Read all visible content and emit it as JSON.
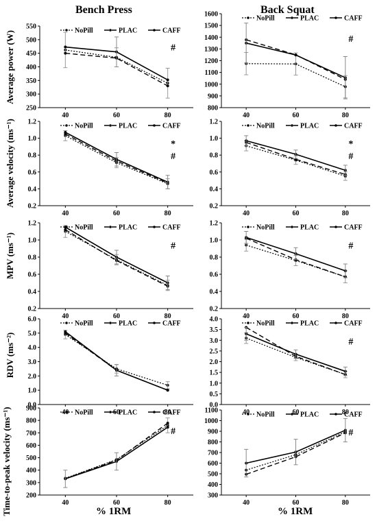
{
  "titles": {
    "left": "Bench Press",
    "right": "Back Squat"
  },
  "row_labels": [
    "Average power (W)",
    "Average velocity (ms⁻¹)",
    "MPV (ms⁻¹)",
    "RDV (ms⁻²)",
    "Time-to-peak velocity (ms⁻¹)"
  ],
  "xlabel": "% 1RM",
  "legend": [
    "NoPill",
    "PLAC",
    "CAFF"
  ],
  "chart_data": [
    {
      "type": "line",
      "panel": "bench-power",
      "x": [
        40,
        60,
        80
      ],
      "ylim": [
        250,
        550
      ],
      "yticks": [
        250,
        300,
        350,
        400,
        450,
        500,
        550
      ],
      "ydec": 0,
      "series": [
        {
          "name": "NoPill",
          "values": [
            462,
            435,
            340
          ],
          "err": [
            65,
            35,
            55
          ]
        },
        {
          "name": "PLAC",
          "values": [
            450,
            432,
            330
          ],
          "err": [
            0,
            0,
            0
          ]
        },
        {
          "name": "CAFF",
          "values": [
            473,
            455,
            352
          ],
          "err": [
            0,
            55,
            0
          ]
        }
      ],
      "annotations": [
        "#"
      ]
    },
    {
      "type": "line",
      "panel": "squat-power",
      "x": [
        40,
        60,
        80
      ],
      "ylim": [
        800,
        1600
      ],
      "yticks": [
        800,
        900,
        1000,
        1100,
        1200,
        1300,
        1400,
        1500,
        1600
      ],
      "ydec": 0,
      "series": [
        {
          "name": "NoPill",
          "values": [
            1175,
            1172,
            978
          ],
          "err": [
            95,
            95,
            95
          ]
        },
        {
          "name": "PLAC",
          "values": [
            1378,
            1250,
            1040
          ],
          "err": [
            0,
            0,
            0
          ]
        },
        {
          "name": "CAFF",
          "values": [
            1350,
            1248,
            1055
          ],
          "err": [
            170,
            0,
            180
          ]
        }
      ],
      "annotations": [
        "#"
      ]
    },
    {
      "type": "line",
      "panel": "bench-velocity",
      "x": [
        40,
        60,
        80
      ],
      "ylim": [
        0.2,
        1.2
      ],
      "yticks": [
        0.2,
        0.4,
        0.6,
        0.8,
        1.0,
        1.2
      ],
      "ydec": 1,
      "series": [
        {
          "name": "NoPill",
          "values": [
            1.03,
            0.71,
            0.46
          ],
          "err": [
            0.06,
            0.06,
            0.06
          ]
        },
        {
          "name": "PLAC",
          "values": [
            1.05,
            0.73,
            0.47
          ],
          "err": [
            0,
            0,
            0
          ]
        },
        {
          "name": "CAFF",
          "values": [
            1.07,
            0.75,
            0.48
          ],
          "err": [
            0,
            0.08,
            0.08
          ]
        }
      ],
      "annotations": [
        "*",
        "#"
      ]
    },
    {
      "type": "line",
      "panel": "squat-velocity",
      "x": [
        40,
        60,
        80
      ],
      "ylim": [
        0.2,
        1.2
      ],
      "yticks": [
        0.2,
        0.4,
        0.6,
        0.8,
        1.0,
        1.2
      ],
      "ydec": 1,
      "series": [
        {
          "name": "NoPill",
          "values": [
            0.91,
            0.74,
            0.55
          ],
          "err": [
            0.06,
            0.05,
            0.05
          ]
        },
        {
          "name": "PLAC",
          "values": [
            0.95,
            0.75,
            0.57
          ],
          "err": [
            0,
            0,
            0
          ]
        },
        {
          "name": "CAFF",
          "values": [
            0.97,
            0.81,
            0.62
          ],
          "err": [
            0.06,
            0.05,
            0.06
          ]
        }
      ],
      "annotations": [
        "*",
        "#"
      ]
    },
    {
      "type": "line",
      "panel": "bench-mpv",
      "x": [
        40,
        60,
        80
      ],
      "ylim": [
        0.2,
        1.2
      ],
      "yticks": [
        0.2,
        0.4,
        0.6,
        0.8,
        1.0,
        1.2
      ],
      "ydec": 1,
      "series": [
        {
          "name": "NoPill",
          "values": [
            1.1,
            0.77,
            0.47
          ],
          "err": [
            0.07,
            0.06,
            0.06
          ]
        },
        {
          "name": "PLAC",
          "values": [
            1.12,
            0.76,
            0.46
          ],
          "err": [
            0,
            0,
            0
          ]
        },
        {
          "name": "CAFF",
          "values": [
            1.15,
            0.8,
            0.5
          ],
          "err": [
            0,
            0.08,
            0.08
          ]
        }
      ],
      "annotations": [
        "#"
      ]
    },
    {
      "type": "line",
      "panel": "squat-mpv",
      "x": [
        40,
        60,
        80
      ],
      "ylim": [
        0.2,
        1.2
      ],
      "yticks": [
        0.2,
        0.4,
        0.6,
        0.8,
        1.0,
        1.2
      ],
      "ydec": 1,
      "series": [
        {
          "name": "NoPill",
          "values": [
            0.94,
            0.76,
            0.57
          ],
          "err": [
            0.07,
            0.06,
            0.07
          ]
        },
        {
          "name": "PLAC",
          "values": [
            1.02,
            0.77,
            0.57
          ],
          "err": [
            0,
            0,
            0
          ]
        },
        {
          "name": "CAFF",
          "values": [
            1.03,
            0.84,
            0.64
          ],
          "err": [
            0.07,
            0.07,
            0.08
          ]
        }
      ],
      "annotations": [
        "#"
      ]
    },
    {
      "type": "line",
      "panel": "bench-rdv",
      "x": [
        40,
        60,
        80
      ],
      "ylim": [
        0.0,
        6.0
      ],
      "yticks": [
        0.0,
        1.0,
        2.0,
        3.0,
        4.0,
        5.0,
        6.0
      ],
      "ydec": 1,
      "series": [
        {
          "name": "NoPill",
          "values": [
            4.9,
            2.5,
            1.35
          ],
          "err": [
            0.3,
            0.3,
            0.25
          ]
        },
        {
          "name": "PLAC",
          "values": [
            5.0,
            2.4,
            1.0
          ],
          "err": [
            0,
            0,
            0
          ]
        },
        {
          "name": "CAFF",
          "values": [
            5.1,
            2.4,
            1.0
          ],
          "err": [
            0,
            0.4,
            0
          ]
        }
      ],
      "annotations": []
    },
    {
      "type": "line",
      "panel": "squat-rdv",
      "x": [
        40,
        60,
        80
      ],
      "ylim": [
        0.0,
        4.0
      ],
      "yticks": [
        0.0,
        0.5,
        1.0,
        1.5,
        2.0,
        2.5,
        3.0,
        3.5,
        4.0
      ],
      "ydec": 1,
      "series": [
        {
          "name": "NoPill",
          "values": [
            3.1,
            2.2,
            1.4
          ],
          "err": [
            0.25,
            0.15,
            0.15
          ]
        },
        {
          "name": "PLAC",
          "values": [
            3.6,
            2.25,
            1.4
          ],
          "err": [
            0,
            0,
            0
          ]
        },
        {
          "name": "CAFF",
          "values": [
            3.3,
            2.35,
            1.55
          ],
          "err": [
            0.3,
            0.2,
            0.2
          ]
        }
      ],
      "annotations": [
        "#"
      ]
    },
    {
      "type": "line",
      "panel": "bench-ttpv",
      "x": [
        40,
        60,
        80
      ],
      "ylim": [
        200,
        900
      ],
      "yticks": [
        200,
        300,
        400,
        500,
        600,
        700,
        800,
        900
      ],
      "ydec": 0,
      "series": [
        {
          "name": "NoPill",
          "values": [
            335,
            485,
            760
          ],
          "err": [
            0,
            0,
            60
          ]
        },
        {
          "name": "PLAC",
          "values": [
            332,
            480,
            778
          ],
          "err": [
            0,
            0,
            0
          ]
        },
        {
          "name": "CAFF",
          "values": [
            330,
            470,
            745
          ],
          "err": [
            70,
            70,
            0
          ]
        }
      ],
      "annotations": [
        "#"
      ]
    },
    {
      "type": "line",
      "panel": "squat-ttpv",
      "x": [
        40,
        60,
        80
      ],
      "ylim": [
        300,
        1100
      ],
      "yticks": [
        300,
        400,
        500,
        600,
        700,
        800,
        900,
        1000,
        1100
      ],
      "ydec": 0,
      "series": [
        {
          "name": "NoPill",
          "values": [
            535,
            680,
            895
          ],
          "err": [
            0,
            0,
            0
          ]
        },
        {
          "name": "PLAC",
          "values": [
            495,
            660,
            885
          ],
          "err": [
            0,
            0,
            0
          ]
        },
        {
          "name": "CAFF",
          "values": [
            600,
            705,
            910
          ],
          "err": [
            130,
            120,
            110
          ]
        }
      ],
      "annotations": [
        "#"
      ]
    }
  ]
}
